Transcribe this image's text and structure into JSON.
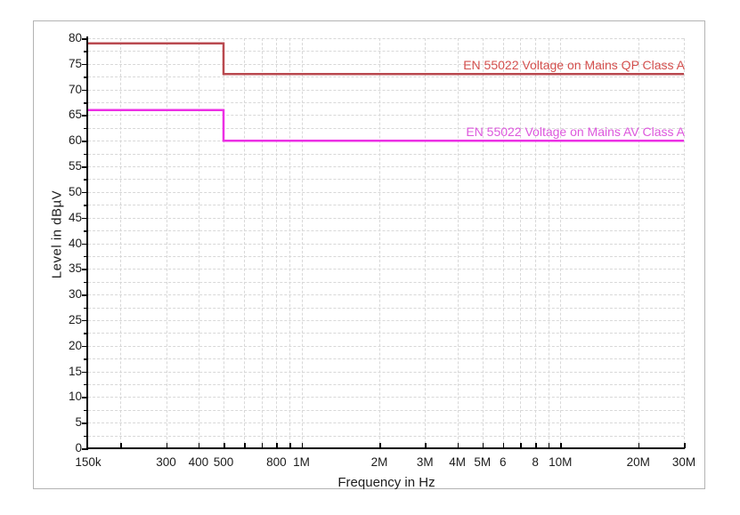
{
  "window": {
    "background": "#ffffff",
    "frame_border": "#b3b3b3"
  },
  "chart_data": {
    "type": "line",
    "subtype": "step-limit-lines",
    "title": "",
    "xlabel": "Frequency in Hz",
    "ylabel": "Level in dBµV",
    "x_scale": "log",
    "xlim": [
      150000,
      30000000
    ],
    "ylim": [
      0,
      80
    ],
    "grid": true,
    "grid_color": "#d8d8d8",
    "axis_color": "#000000",
    "text_color": "#1c1c1c",
    "y_minor_step": 2.5,
    "y_ticks": [
      {
        "v": 0,
        "label": "0"
      },
      {
        "v": 5,
        "label": "5"
      },
      {
        "v": 10,
        "label": "10"
      },
      {
        "v": 15,
        "label": "15"
      },
      {
        "v": 20,
        "label": "20"
      },
      {
        "v": 25,
        "label": "25"
      },
      {
        "v": 30,
        "label": "30"
      },
      {
        "v": 35,
        "label": "35"
      },
      {
        "v": 40,
        "label": "40"
      },
      {
        "v": 45,
        "label": "45"
      },
      {
        "v": 50,
        "label": "50"
      },
      {
        "v": 55,
        "label": "55"
      },
      {
        "v": 60,
        "label": "60"
      },
      {
        "v": 65,
        "label": "65"
      },
      {
        "v": 70,
        "label": "70"
      },
      {
        "v": 75,
        "label": "75"
      },
      {
        "v": 80,
        "label": "80"
      }
    ],
    "x_ticks": [
      {
        "f": 150000,
        "label": "150k"
      },
      {
        "f": 300000,
        "label": "300"
      },
      {
        "f": 400000,
        "label": "400"
      },
      {
        "f": 500000,
        "label": "500"
      },
      {
        "f": 800000,
        "label": "800"
      },
      {
        "f": 1000000,
        "label": "1M"
      },
      {
        "f": 2000000,
        "label": "2M"
      },
      {
        "f": 3000000,
        "label": "3M"
      },
      {
        "f": 4000000,
        "label": "4M"
      },
      {
        "f": 5000000,
        "label": "5M"
      },
      {
        "f": 6000000,
        "label": "6"
      },
      {
        "f": 8000000,
        "label": "8"
      },
      {
        "f": 10000000,
        "label": "10M"
      },
      {
        "f": 20000000,
        "label": "20M"
      },
      {
        "f": 30000000,
        "label": "30M"
      }
    ],
    "x_gridlines": [
      200000,
      300000,
      400000,
      500000,
      600000,
      700000,
      800000,
      900000,
      1000000,
      2000000,
      3000000,
      4000000,
      5000000,
      6000000,
      7000000,
      8000000,
      9000000,
      10000000,
      20000000,
      30000000
    ],
    "series": [
      {
        "id": "qp",
        "name": "EN 55022 Voltage on Mains QP Class A",
        "line_color": "#b9494f",
        "label_color": "#d4504e",
        "points": [
          [
            150000,
            79
          ],
          [
            500000,
            79
          ],
          [
            500000,
            73
          ],
          [
            30000000,
            73
          ]
        ]
      },
      {
        "id": "av",
        "name": "EN 55022 Voltage on Mains AV Class A",
        "line_color": "#ec2fe4",
        "label_color": "#dd58dd",
        "points": [
          [
            150000,
            66
          ],
          [
            500000,
            66
          ],
          [
            500000,
            60
          ],
          [
            30000000,
            60
          ]
        ]
      }
    ]
  }
}
